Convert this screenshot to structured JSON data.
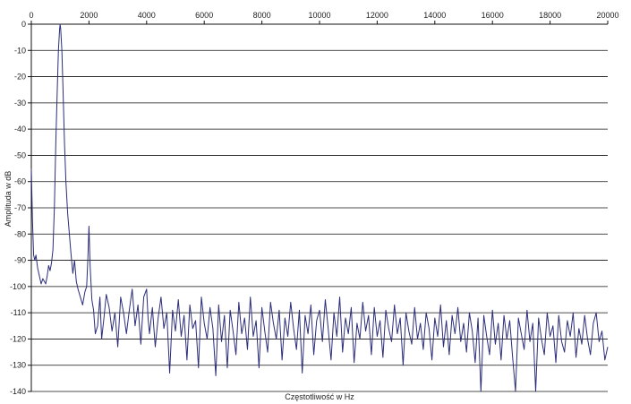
{
  "chart_data": {
    "type": "line",
    "title": "",
    "xlabel": "Częstotliwość w Hz",
    "ylabel": "Amplituda w dB",
    "xlim": [
      0,
      20000
    ],
    "ylim": [
      -140,
      0
    ],
    "x_ticks": [
      0,
      2000,
      4000,
      6000,
      8000,
      10000,
      12000,
      14000,
      16000,
      18000,
      20000
    ],
    "y_ticks": [
      0,
      -10,
      -20,
      -30,
      -40,
      -50,
      -60,
      -70,
      -80,
      -90,
      -100,
      -110,
      -120,
      -130,
      -140
    ],
    "x_tick_labels": [
      "0",
      "2000",
      "4000",
      "6000",
      "8000",
      "10000",
      "12000",
      "14000",
      "16000",
      "18000",
      "20000"
    ],
    "y_tick_labels": [
      "0",
      "-10",
      "-20",
      "-30",
      "-40",
      "-50",
      "-60",
      "-70",
      "-80",
      "-90",
      "-100",
      "-110",
      "-120",
      "-130",
      "-140"
    ],
    "x_axis_position": "top",
    "grid": {
      "horizontal": true,
      "vertical": false
    },
    "legend": "none",
    "series": [
      {
        "color": "#2b2d7a",
        "points": [
          [
            0,
            -55
          ],
          [
            40,
            -75
          ],
          [
            80,
            -88
          ],
          [
            120,
            -90
          ],
          [
            160,
            -88
          ],
          [
            220,
            -93
          ],
          [
            280,
            -96
          ],
          [
            340,
            -99
          ],
          [
            400,
            -97
          ],
          [
            450,
            -98
          ],
          [
            500,
            -99
          ],
          [
            550,
            -96
          ],
          [
            600,
            -92
          ],
          [
            650,
            -94
          ],
          [
            700,
            -91
          ],
          [
            750,
            -86
          ],
          [
            800,
            -70
          ],
          [
            850,
            -45
          ],
          [
            900,
            -25
          ],
          [
            940,
            -10
          ],
          [
            980,
            -2
          ],
          [
            1000,
            0
          ],
          [
            1020,
            -2
          ],
          [
            1060,
            -10
          ],
          [
            1100,
            -25
          ],
          [
            1150,
            -45
          ],
          [
            1200,
            -60
          ],
          [
            1260,
            -72
          ],
          [
            1320,
            -80
          ],
          [
            1380,
            -88
          ],
          [
            1440,
            -95
          ],
          [
            1500,
            -90
          ],
          [
            1560,
            -98
          ],
          [
            1620,
            -101
          ],
          [
            1700,
            -104
          ],
          [
            1780,
            -107
          ],
          [
            1860,
            -102
          ],
          [
            1920,
            -100
          ],
          [
            1960,
            -90
          ],
          [
            2000,
            -77
          ],
          [
            2040,
            -92
          ],
          [
            2100,
            -105
          ],
          [
            2160,
            -109
          ],
          [
            2220,
            -118
          ],
          [
            2300,
            -115
          ],
          [
            2380,
            -104
          ],
          [
            2440,
            -120
          ],
          [
            2520,
            -112
          ],
          [
            2600,
            -103
          ],
          [
            2700,
            -108
          ],
          [
            2800,
            -117
          ],
          [
            2900,
            -110
          ],
          [
            3000,
            -123
          ],
          [
            3100,
            -104
          ],
          [
            3200,
            -110
          ],
          [
            3300,
            -118
          ],
          [
            3400,
            -109
          ],
          [
            3500,
            -101
          ],
          [
            3600,
            -115
          ],
          [
            3700,
            -107
          ],
          [
            3800,
            -122
          ],
          [
            3900,
            -104
          ],
          [
            4000,
            -101
          ],
          [
            4050,
            -112
          ],
          [
            4100,
            -118
          ],
          [
            4200,
            -108
          ],
          [
            4300,
            -123
          ],
          [
            4400,
            -112
          ],
          [
            4500,
            -104
          ],
          [
            4600,
            -116
          ],
          [
            4700,
            -110
          ],
          [
            4800,
            -133
          ],
          [
            4900,
            -109
          ],
          [
            5000,
            -117
          ],
          [
            5100,
            -105
          ],
          [
            5200,
            -119
          ],
          [
            5300,
            -111
          ],
          [
            5400,
            -128
          ],
          [
            5500,
            -107
          ],
          [
            5600,
            -116
          ],
          [
            5700,
            -113
          ],
          [
            5800,
            -131
          ],
          [
            5900,
            -104
          ],
          [
            6000,
            -114
          ],
          [
            6100,
            -120
          ],
          [
            6200,
            -108
          ],
          [
            6300,
            -116
          ],
          [
            6400,
            -134
          ],
          [
            6500,
            -107
          ],
          [
            6600,
            -121
          ],
          [
            6700,
            -111
          ],
          [
            6800,
            -131
          ],
          [
            6900,
            -109
          ],
          [
            7000,
            -117
          ],
          [
            7100,
            -126
          ],
          [
            7200,
            -106
          ],
          [
            7300,
            -118
          ],
          [
            7400,
            -112
          ],
          [
            7500,
            -124
          ],
          [
            7600,
            -104
          ],
          [
            7700,
            -119
          ],
          [
            7800,
            -113
          ],
          [
            7900,
            -131
          ],
          [
            8000,
            -108
          ],
          [
            8100,
            -117
          ],
          [
            8200,
            -125
          ],
          [
            8300,
            -106
          ],
          [
            8400,
            -114
          ],
          [
            8500,
            -120
          ],
          [
            8600,
            -109
          ],
          [
            8700,
            -128
          ],
          [
            8800,
            -112
          ],
          [
            8900,
            -119
          ],
          [
            9000,
            -106
          ],
          [
            9100,
            -116
          ],
          [
            9200,
            -124
          ],
          [
            9300,
            -109
          ],
          [
            9400,
            -133
          ],
          [
            9500,
            -111
          ],
          [
            9600,
            -118
          ],
          [
            9700,
            -107
          ],
          [
            9800,
            -126
          ],
          [
            9900,
            -113
          ],
          [
            10000,
            -109
          ],
          [
            10100,
            -121
          ],
          [
            10200,
            -105
          ],
          [
            10300,
            -116
          ],
          [
            10400,
            -128
          ],
          [
            10500,
            -110
          ],
          [
            10600,
            -119
          ],
          [
            10700,
            -104
          ],
          [
            10800,
            -125
          ],
          [
            10900,
            -112
          ],
          [
            11000,
            -118
          ],
          [
            11100,
            -108
          ],
          [
            11200,
            -129
          ],
          [
            11300,
            -114
          ],
          [
            11400,
            -120
          ],
          [
            11500,
            -106
          ],
          [
            11600,
            -117
          ],
          [
            11700,
            -111
          ],
          [
            11800,
            -126
          ],
          [
            11900,
            -108
          ],
          [
            12000,
            -119
          ],
          [
            12100,
            -113
          ],
          [
            12200,
            -127
          ],
          [
            12300,
            -109
          ],
          [
            12400,
            -116
          ],
          [
            12500,
            -121
          ],
          [
            12600,
            -107
          ],
          [
            12700,
            -118
          ],
          [
            12800,
            -112
          ],
          [
            12900,
            -130
          ],
          [
            13000,
            -110
          ],
          [
            13100,
            -117
          ],
          [
            13200,
            -122
          ],
          [
            13300,
            -108
          ],
          [
            13400,
            -120
          ],
          [
            13500,
            -114
          ],
          [
            13600,
            -124
          ],
          [
            13700,
            -110
          ],
          [
            13800,
            -116
          ],
          [
            13900,
            -128
          ],
          [
            14000,
            -112
          ],
          [
            14100,
            -119
          ],
          [
            14200,
            -107
          ],
          [
            14300,
            -123
          ],
          [
            14400,
            -113
          ],
          [
            14500,
            -126
          ],
          [
            14600,
            -111
          ],
          [
            14700,
            -118
          ],
          [
            14800,
            -108
          ],
          [
            14900,
            -121
          ],
          [
            15000,
            -114
          ],
          [
            15100,
            -125
          ],
          [
            15200,
            -110
          ],
          [
            15300,
            -117
          ],
          [
            15400,
            -129
          ],
          [
            15500,
            -112
          ],
          [
            15600,
            -140
          ],
          [
            15700,
            -111
          ],
          [
            15800,
            -119
          ],
          [
            15900,
            -126
          ],
          [
            16000,
            -109
          ],
          [
            16100,
            -122
          ],
          [
            16200,
            -114
          ],
          [
            16300,
            -128
          ],
          [
            16400,
            -111
          ],
          [
            16500,
            -120
          ],
          [
            16600,
            -113
          ],
          [
            16700,
            -127
          ],
          [
            16800,
            -140
          ],
          [
            16900,
            -112
          ],
          [
            17000,
            -118
          ],
          [
            17100,
            -124
          ],
          [
            17200,
            -109
          ],
          [
            17300,
            -121
          ],
          [
            17400,
            -114
          ],
          [
            17500,
            -140
          ],
          [
            17600,
            -112
          ],
          [
            17700,
            -120
          ],
          [
            17800,
            -126
          ],
          [
            17900,
            -110
          ],
          [
            18000,
            -119
          ],
          [
            18100,
            -115
          ],
          [
            18200,
            -129
          ],
          [
            18300,
            -111
          ],
          [
            18400,
            -121
          ],
          [
            18500,
            -125
          ],
          [
            18600,
            -113
          ],
          [
            18700,
            -119
          ],
          [
            18800,
            -110
          ],
          [
            18900,
            -127
          ],
          [
            19000,
            -116
          ],
          [
            19100,
            -122
          ],
          [
            19200,
            -111
          ],
          [
            19300,
            -120
          ],
          [
            19400,
            -126
          ],
          [
            19500,
            -114
          ],
          [
            19600,
            -110
          ],
          [
            19700,
            -121
          ],
          [
            19800,
            -117
          ],
          [
            19900,
            -128
          ],
          [
            20000,
            -123
          ]
        ]
      }
    ]
  }
}
